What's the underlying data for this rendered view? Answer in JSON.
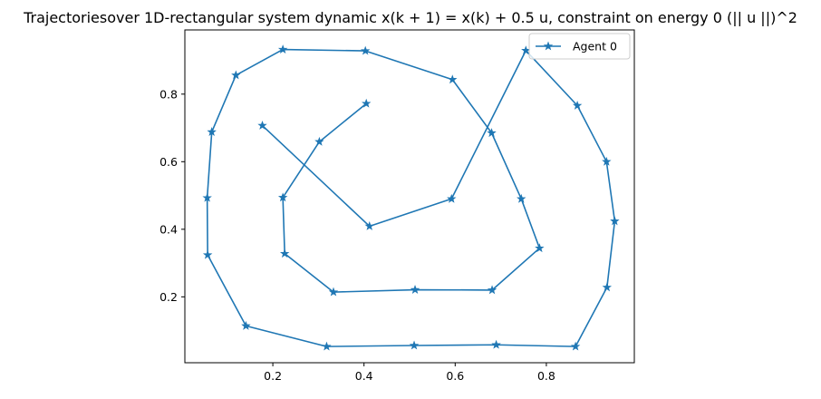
{
  "chart_data": {
    "type": "line",
    "title": "Trajectoriesover 1D-rectangular system dynamic x(k + 1) = x(k) + 0.5 u, constraint on energy 0 (|| u ||)^2",
    "xlabel": "",
    "ylabel": "",
    "xlim": [
      0.007,
      0.993
    ],
    "ylim": [
      0.005,
      0.99
    ],
    "x_ticks": [
      0.2,
      0.4,
      0.6,
      0.8
    ],
    "x_tick_labels": [
      "0.2",
      "0.4",
      "0.6",
      "0.8"
    ],
    "y_ticks": [
      0.2,
      0.4,
      0.6,
      0.8
    ],
    "y_tick_labels": [
      "0.2",
      "0.4",
      "0.6",
      "0.8"
    ],
    "grid": false,
    "legend": {
      "position": "top-right",
      "entries": [
        "Agent 0"
      ]
    },
    "series": [
      {
        "name": "Agent 0",
        "color": "#1f77b4",
        "marker": "star",
        "points": [
          [
            0.405,
            0.772
          ],
          [
            0.302,
            0.659
          ],
          [
            0.222,
            0.494
          ],
          [
            0.226,
            0.328
          ],
          [
            0.333,
            0.214
          ],
          [
            0.512,
            0.221
          ],
          [
            0.681,
            0.22
          ],
          [
            0.785,
            0.344
          ],
          [
            0.745,
            0.49
          ],
          [
            0.68,
            0.685
          ],
          [
            0.594,
            0.843
          ],
          [
            0.403,
            0.928
          ],
          [
            0.222,
            0.932
          ],
          [
            0.119,
            0.856
          ],
          [
            0.066,
            0.688
          ],
          [
            0.056,
            0.493
          ],
          [
            0.057,
            0.324
          ],
          [
            0.141,
            0.114
          ],
          [
            0.318,
            0.053
          ],
          [
            0.51,
            0.056
          ],
          [
            0.69,
            0.058
          ],
          [
            0.864,
            0.053
          ],
          [
            0.933,
            0.228
          ],
          [
            0.95,
            0.424
          ],
          [
            0.932,
            0.6
          ],
          [
            0.868,
            0.766
          ],
          [
            0.755,
            0.929
          ],
          [
            0.592,
            0.49
          ],
          [
            0.412,
            0.409
          ],
          [
            0.177,
            0.707
          ]
        ]
      }
    ]
  }
}
